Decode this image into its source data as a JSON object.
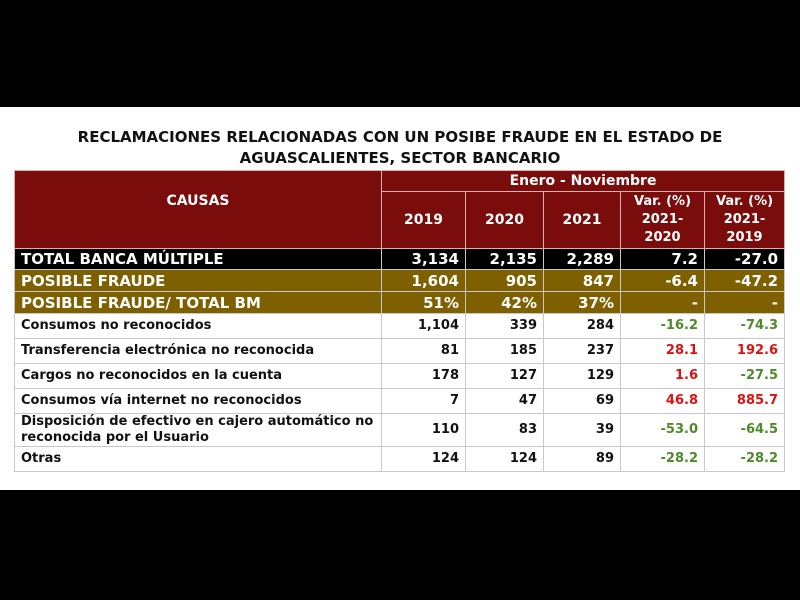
{
  "title_lines": [
    "RECLAMACIONES RELACIONADAS CON UN POSIBE FRAUDE EN EL ESTADO DE",
    "AGUASCALIENTES, SECTOR BANCARIO"
  ],
  "header": {
    "causas": "CAUSAS",
    "period": "Enero - Noviembre",
    "columns": [
      [
        "2019"
      ],
      [
        "2020"
      ],
      [
        "2021"
      ],
      [
        "Var. (%)",
        "2021-",
        "2020"
      ],
      [
        "Var. (%)",
        "2021-",
        "2019"
      ]
    ]
  },
  "rows": [
    [
      "TOTAL BANCA MÚLTIPLE",
      "3,134",
      "2,135",
      "2,289",
      "7.2",
      "-27.0"
    ],
    [
      "POSIBLE FRAUDE",
      "1,604",
      "905",
      "847",
      "-6.4",
      "-47.2"
    ],
    [
      "POSIBLE FRAUDE/ TOTAL BM",
      "51%",
      "42%",
      "37%",
      "-",
      "-"
    ],
    [
      "Consumos no reconocidos",
      "1,104",
      "339",
      "284",
      "-16.2",
      "-74.3"
    ],
    [
      "Transferencia electrónica no reconocida",
      "81",
      "185",
      "237",
      "28.1",
      "192.6"
    ],
    [
      "Cargos no reconocidos en la cuenta",
      "178",
      "127",
      "129",
      "1.6",
      "-27.5"
    ],
    [
      "Consumos vía internet no reconocidos",
      "7",
      "47",
      "69",
      "46.8",
      "885.7"
    ],
    [
      "Disposición de efectivo en cajero automático no reconocida por el Usuario",
      "110",
      "83",
      "39",
      "-53.0",
      "-64.5"
    ],
    [
      "Otras",
      "124",
      "124",
      "89",
      "-28.2",
      "-28.2"
    ]
  ]
}
